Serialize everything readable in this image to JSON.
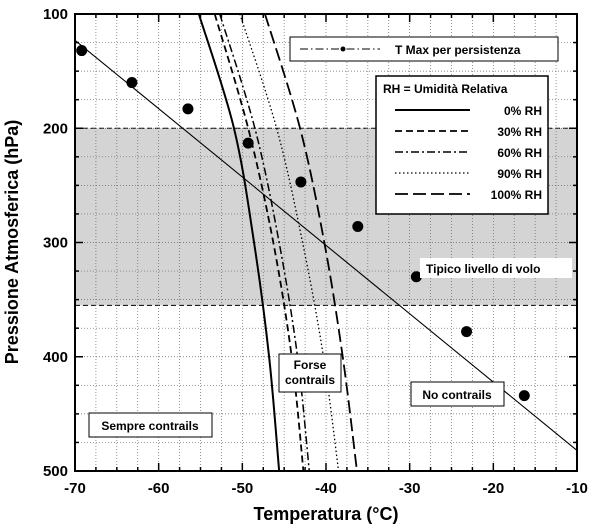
{
  "chart_data": {
    "type": "line",
    "xlabel": "Temperatura (°C)",
    "ylabel": "Pressione Atmosferica (hPa)",
    "xlim": [
      -70,
      -10
    ],
    "ylim": [
      100,
      500
    ],
    "y_inverted": true,
    "x_ticks": [
      "-70",
      "-60",
      "-50",
      "-40",
      "-30",
      "-20",
      "-10"
    ],
    "y_ticks": [
      "100",
      "200",
      "300",
      "400",
      "500"
    ],
    "grid": "dotted, minor every 2.5 °C and 25 hPa",
    "shaded_band": {
      "from": 200,
      "to": 355,
      "label": "Tipico livello di volo"
    },
    "persistence": {
      "name": "T Max per persistenza",
      "points": [
        {
          "t": -69.2,
          "p": 132
        },
        {
          "t": -63.2,
          "p": 160
        },
        {
          "t": -56.5,
          "p": 183
        },
        {
          "t": -49.3,
          "p": 213
        },
        {
          "t": -43.0,
          "p": 247
        },
        {
          "t": -36.2,
          "p": 286
        },
        {
          "t": -29.2,
          "p": 330
        },
        {
          "t": -23.2,
          "p": 378
        },
        {
          "t": -16.3,
          "p": 434
        }
      ],
      "line_start": {
        "t": -70,
        "p": 123
      },
      "line_end": {
        "t": -10,
        "p": 482
      }
    },
    "legend_title": "RH = Umidità Relativa",
    "series": [
      {
        "name": "0% RH",
        "style": "solid",
        "points": [
          {
            "t": -55.2,
            "p": 100
          },
          {
            "t": -51.0,
            "p": 200
          },
          {
            "t": -48.6,
            "p": 300
          },
          {
            "t": -46.8,
            "p": 400
          },
          {
            "t": -45.6,
            "p": 500
          }
        ]
      },
      {
        "name": "30% RH",
        "style": "dashed",
        "points": [
          {
            "t": -53.3,
            "p": 100
          },
          {
            "t": -49.3,
            "p": 200
          },
          {
            "t": -46.3,
            "p": 300
          },
          {
            "t": -44.1,
            "p": 400
          },
          {
            "t": -42.7,
            "p": 500
          }
        ]
      },
      {
        "name": "60% RH",
        "style": "dashdot",
        "points": [
          {
            "t": -52.7,
            "p": 100
          },
          {
            "t": -48.5,
            "p": 200
          },
          {
            "t": -45.6,
            "p": 300
          },
          {
            "t": -43.4,
            "p": 400
          },
          {
            "t": -42.0,
            "p": 500
          }
        ]
      },
      {
        "name": "90% RH",
        "style": "dotted",
        "points": [
          {
            "t": -50.3,
            "p": 100
          },
          {
            "t": -45.9,
            "p": 200
          },
          {
            "t": -42.8,
            "p": 300
          },
          {
            "t": -40.3,
            "p": 400
          },
          {
            "t": -38.5,
            "p": 500
          }
        ]
      },
      {
        "name": "100% RH",
        "style": "longdash",
        "points": [
          {
            "t": -47.3,
            "p": 100
          },
          {
            "t": -43.1,
            "p": 200
          },
          {
            "t": -40.2,
            "p": 300
          },
          {
            "t": -38.0,
            "p": 400
          },
          {
            "t": -36.3,
            "p": 500
          }
        ]
      }
    ],
    "annotations": [
      {
        "key": "sempre",
        "text": "Sempre contrails"
      },
      {
        "key": "forse1",
        "text": "Forse"
      },
      {
        "key": "forse2",
        "text": "contrails"
      },
      {
        "key": "no",
        "text": "No contrails"
      }
    ]
  }
}
